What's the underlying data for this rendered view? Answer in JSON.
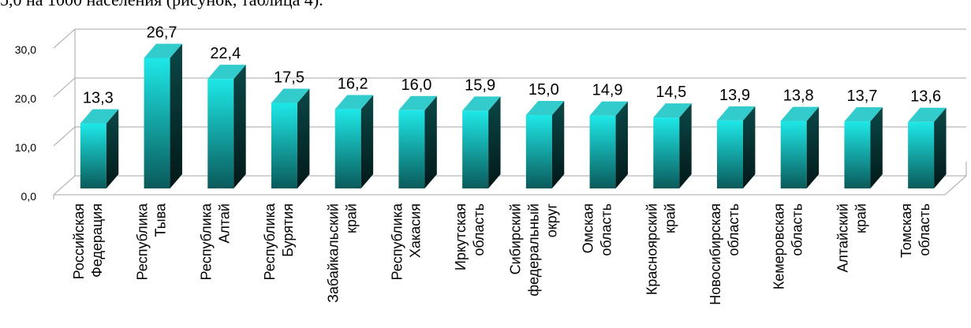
{
  "top_text": "5,0 на 1000 населения (рисунок, таблица 4).",
  "chart_data": {
    "type": "bar",
    "categories": [
      [
        "Российская",
        "Федерация"
      ],
      [
        "Республика",
        "Тыва"
      ],
      [
        "Республика",
        "Алтай"
      ],
      [
        "Республика",
        "Бурятия"
      ],
      [
        "Забайкальский",
        "край"
      ],
      [
        "Республика",
        "Хакасия"
      ],
      [
        "Иркутская",
        "область"
      ],
      [
        "Сибирский",
        "федеральный",
        "округ"
      ],
      [
        "Омская",
        "область"
      ],
      [
        "Красноярский",
        "край"
      ],
      [
        "Новосибирская",
        "область"
      ],
      [
        "Кемеровская",
        "область"
      ],
      [
        "Алтайский",
        "край"
      ],
      [
        "Томская",
        "область"
      ]
    ],
    "values": [
      13.3,
      26.7,
      22.4,
      17.5,
      16.2,
      16.0,
      15.9,
      15.0,
      14.9,
      14.5,
      13.9,
      13.8,
      13.7,
      13.6
    ],
    "value_labels": [
      "13,3",
      "26,7",
      "22,4",
      "17,5",
      "16,2",
      "16,0",
      "15,9",
      "15,0",
      "14,9",
      "14,5",
      "13,9",
      "13,8",
      "13,7",
      "13,6"
    ],
    "y_ticks": [
      0,
      10,
      20,
      30
    ],
    "y_tick_labels": [
      "0,0",
      "10,0",
      "20,0",
      "30,0"
    ],
    "ylim": [
      0,
      30
    ],
    "grid": true,
    "style": "3d-cylinder-bars",
    "colors": {
      "bar_front": "#1ee8e8",
      "bar_dark": "#0a5a5a",
      "bar_top": "#33cccc",
      "bar_side": "#0b4848",
      "grid": "#a6a6a6"
    }
  }
}
